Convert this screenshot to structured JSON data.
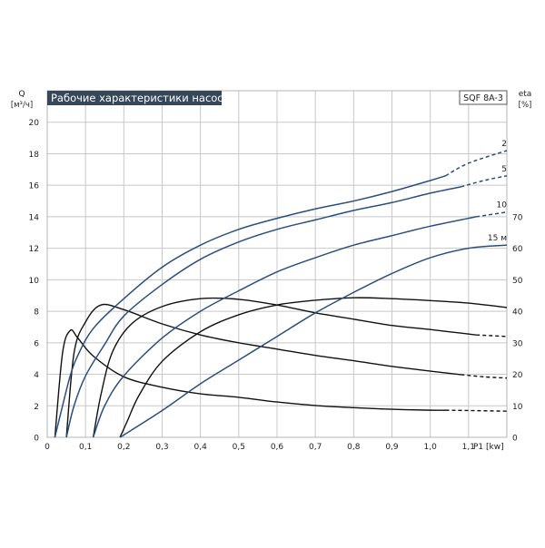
{
  "chart_data": {
    "type": "line",
    "title": "Рабочие характеристики насоса",
    "model_label": "SQF 8A-3",
    "left_axis": {
      "label_line1": "Q",
      "label_line2": "[м³/ч]",
      "range": [
        0,
        22
      ],
      "ticks": [
        "0",
        "2",
        "4",
        "6",
        "8",
        "10",
        "12",
        "14",
        "16",
        "18",
        "20"
      ],
      "tick_values": [
        0,
        2,
        4,
        6,
        8,
        10,
        12,
        14,
        16,
        18,
        20
      ]
    },
    "right_axis": {
      "label_line1": "eta",
      "label_line2": "[%]",
      "range": [
        0,
        110
      ],
      "ticks": [
        "0",
        "10",
        "20",
        "30",
        "40",
        "50",
        "60",
        "70"
      ],
      "tick_values": [
        0,
        10,
        20,
        30,
        40,
        50,
        60,
        70
      ]
    },
    "x_axis": {
      "label": "P1 [kw]",
      "range": [
        0,
        1.2
      ],
      "ticks": [
        "0",
        "0,1",
        "0,2",
        "0,3",
        "0,4",
        "0,5",
        "0,6",
        "0,7",
        "0,8",
        "0,9",
        "1,0",
        "1,1"
      ],
      "tick_values": [
        0,
        0.1,
        0.2,
        0.3,
        0.4,
        0.5,
        0.6,
        0.7,
        0.8,
        0.9,
        1.0,
        1.1
      ]
    },
    "grid": true,
    "colors": {
      "flow": "#2a4f7f",
      "efficiency": "#111111",
      "grid": "#c8c8c8",
      "title_bg": "#36475a",
      "title_fg": "#ffffff"
    },
    "flow_series": [
      {
        "name": "2",
        "axis": "left",
        "solid_until": 1.04,
        "points": [
          [
            0.02,
            0
          ],
          [
            0.04,
            2.0
          ],
          [
            0.06,
            3.9
          ],
          [
            0.08,
            5.2
          ],
          [
            0.12,
            6.9
          ],
          [
            0.2,
            8.8
          ],
          [
            0.3,
            10.8
          ],
          [
            0.4,
            12.2
          ],
          [
            0.5,
            13.2
          ],
          [
            0.6,
            13.9
          ],
          [
            0.7,
            14.5
          ],
          [
            0.8,
            15.0
          ],
          [
            0.9,
            15.6
          ],
          [
            1.0,
            16.3
          ],
          [
            1.04,
            16.6
          ],
          [
            1.1,
            17.4
          ],
          [
            1.2,
            18.2
          ]
        ]
      },
      {
        "name": "5",
        "axis": "left",
        "solid_until": 1.08,
        "points": [
          [
            0.05,
            0
          ],
          [
            0.07,
            2.0
          ],
          [
            0.1,
            3.9
          ],
          [
            0.15,
            5.9
          ],
          [
            0.2,
            7.7
          ],
          [
            0.3,
            9.7
          ],
          [
            0.4,
            11.3
          ],
          [
            0.5,
            12.4
          ],
          [
            0.6,
            13.2
          ],
          [
            0.7,
            13.8
          ],
          [
            0.8,
            14.4
          ],
          [
            0.9,
            14.9
          ],
          [
            1.0,
            15.5
          ],
          [
            1.08,
            15.9
          ],
          [
            1.14,
            16.3
          ],
          [
            1.2,
            16.6
          ]
        ]
      },
      {
        "name": "10",
        "axis": "left",
        "solid_until": 1.12,
        "points": [
          [
            0.12,
            0
          ],
          [
            0.15,
            2.0
          ],
          [
            0.2,
            3.9
          ],
          [
            0.3,
            6.3
          ],
          [
            0.4,
            8.0
          ],
          [
            0.5,
            9.3
          ],
          [
            0.6,
            10.5
          ],
          [
            0.7,
            11.4
          ],
          [
            0.8,
            12.2
          ],
          [
            0.9,
            12.8
          ],
          [
            1.0,
            13.4
          ],
          [
            1.12,
            14.0
          ],
          [
            1.2,
            14.3
          ]
        ]
      },
      {
        "name": "15 м",
        "axis": "left",
        "solid_until": 1.2,
        "points": [
          [
            0.19,
            0
          ],
          [
            0.3,
            1.7
          ],
          [
            0.4,
            3.4
          ],
          [
            0.5,
            4.9
          ],
          [
            0.6,
            6.4
          ],
          [
            0.7,
            7.9
          ],
          [
            0.8,
            9.2
          ],
          [
            0.9,
            10.4
          ],
          [
            1.0,
            11.4
          ],
          [
            1.1,
            12.0
          ],
          [
            1.2,
            12.2
          ]
        ]
      }
    ],
    "efficiency_series": [
      {
        "name": "2",
        "axis": "right",
        "solid_until": 1.04,
        "points": [
          [
            0.02,
            0
          ],
          [
            0.04,
            26.8
          ],
          [
            0.06,
            33.9
          ],
          [
            0.08,
            31.5
          ],
          [
            0.12,
            25.8
          ],
          [
            0.2,
            19.2
          ],
          [
            0.3,
            15.9
          ],
          [
            0.4,
            13.8
          ],
          [
            0.5,
            12.7
          ],
          [
            0.6,
            11.2
          ],
          [
            0.7,
            10.1
          ],
          [
            0.8,
            9.4
          ],
          [
            0.9,
            8.9
          ],
          [
            1.0,
            8.6
          ],
          [
            1.04,
            8.6
          ],
          [
            1.1,
            8.5
          ],
          [
            1.2,
            8.3
          ]
        ]
      },
      {
        "name": "5",
        "axis": "right",
        "solid_until": 1.08,
        "points": [
          [
            0.05,
            0
          ],
          [
            0.07,
            26.8
          ],
          [
            0.1,
            36.6
          ],
          [
            0.14,
            42.0
          ],
          [
            0.2,
            40.5
          ],
          [
            0.3,
            36.0
          ],
          [
            0.4,
            32.5
          ],
          [
            0.5,
            30.0
          ],
          [
            0.6,
            28.0
          ],
          [
            0.7,
            26.0
          ],
          [
            0.8,
            24.3
          ],
          [
            0.9,
            22.5
          ],
          [
            1.0,
            21.0
          ],
          [
            1.08,
            19.9
          ],
          [
            1.14,
            19.2
          ],
          [
            1.2,
            18.8
          ]
        ]
      },
      {
        "name": "10",
        "axis": "right",
        "solid_until": 1.12,
        "points": [
          [
            0.12,
            0
          ],
          [
            0.14,
            13.4
          ],
          [
            0.17,
            27.0
          ],
          [
            0.22,
            36.0
          ],
          [
            0.3,
            41.5
          ],
          [
            0.4,
            44.0
          ],
          [
            0.5,
            43.8
          ],
          [
            0.6,
            42.0
          ],
          [
            0.7,
            39.5
          ],
          [
            0.8,
            37.5
          ],
          [
            0.9,
            35.5
          ],
          [
            1.0,
            34.2
          ],
          [
            1.12,
            32.5
          ],
          [
            1.2,
            32.0
          ]
        ]
      },
      {
        "name": "15 м",
        "axis": "right",
        "solid_until": 1.2,
        "points": [
          [
            0.19,
            0
          ],
          [
            0.21,
            5.4
          ],
          [
            0.24,
            13.4
          ],
          [
            0.3,
            24.1
          ],
          [
            0.4,
            33.5
          ],
          [
            0.5,
            38.9
          ],
          [
            0.6,
            42.0
          ],
          [
            0.7,
            43.5
          ],
          [
            0.8,
            44.3
          ],
          [
            0.9,
            44.0
          ],
          [
            1.0,
            43.4
          ],
          [
            1.1,
            42.6
          ],
          [
            1.2,
            41.2
          ]
        ]
      }
    ]
  }
}
